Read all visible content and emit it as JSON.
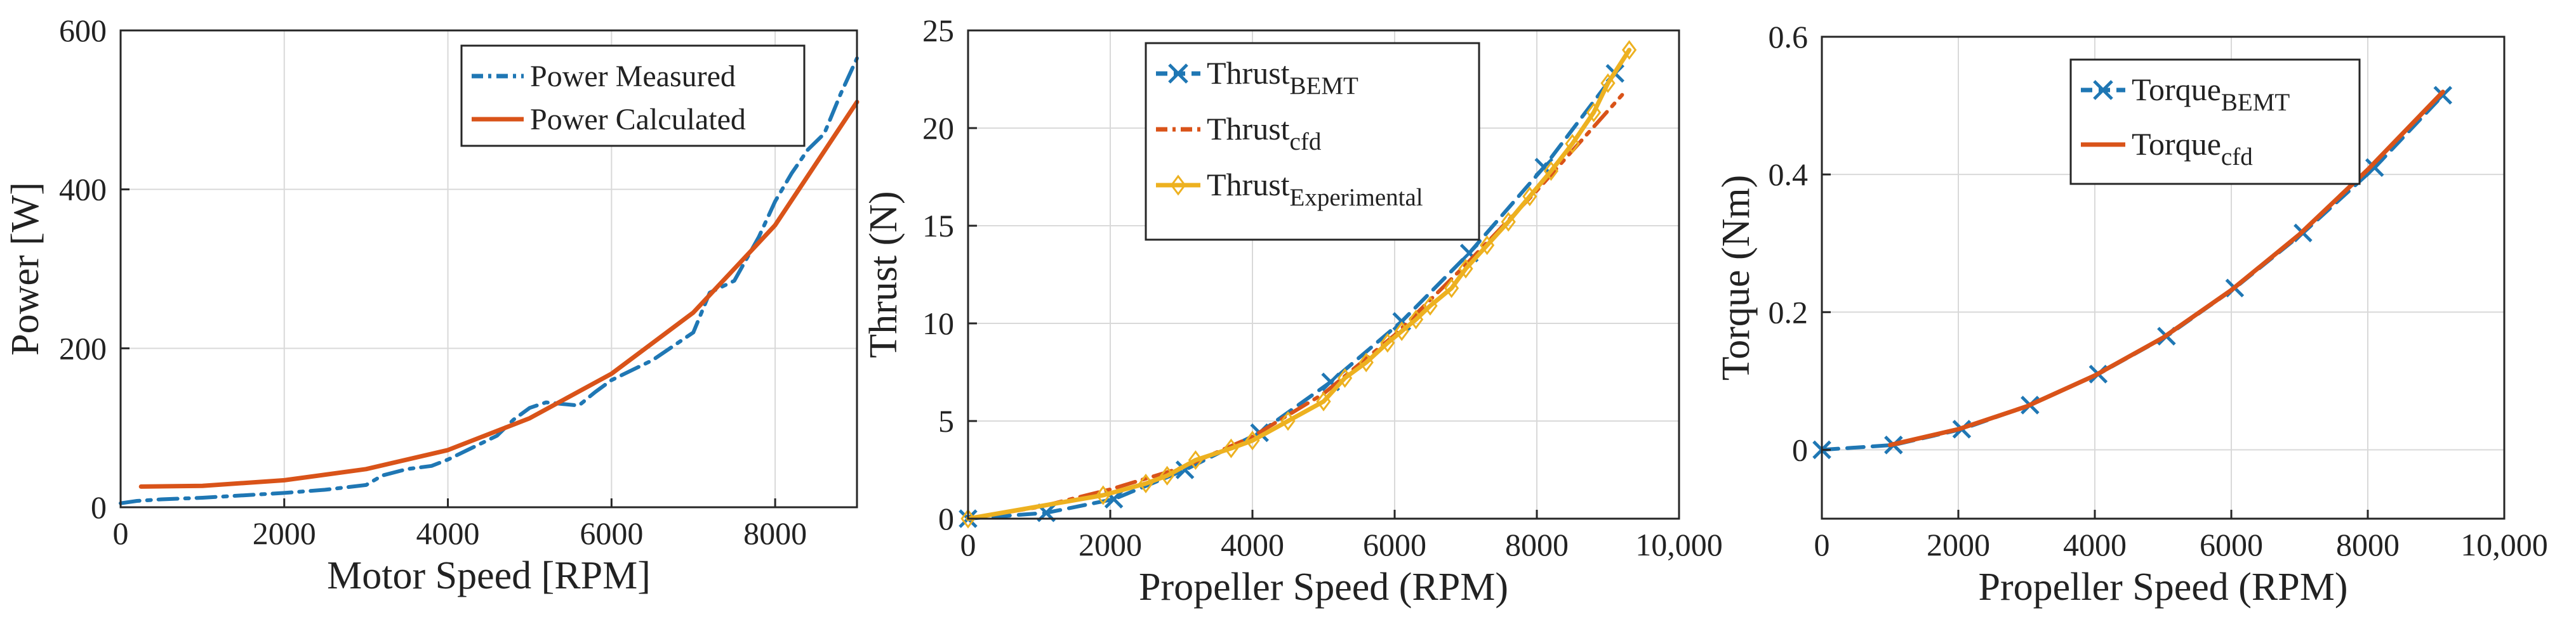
{
  "colors": {
    "blue": "#1f77b4",
    "orange": "#d95319",
    "yellow": "#edb120",
    "grid": "#d9d9d9",
    "axis": "#262626"
  },
  "chart_data": [
    {
      "type": "line",
      "title": "",
      "xlabel": "Motor Speed  [RPM]",
      "ylabel": "Power [W]",
      "xlim": [
        0,
        9000
      ],
      "ylim": [
        0,
        600
      ],
      "xticks": [
        0,
        2000,
        4000,
        6000,
        8000
      ],
      "xtick_labels": [
        "0",
        "2000",
        "4000",
        "6000",
        "8000"
      ],
      "yticks": [
        0,
        200,
        400,
        600
      ],
      "ytick_labels": [
        "0",
        "200",
        "400",
        "600"
      ],
      "grid": true,
      "legend_position": "top-right",
      "series": [
        {
          "name": "Power Measured",
          "label_main": "Power Measured",
          "label_sub": "",
          "style": "dashdot",
          "color": "#1f77b4",
          "marker": "none",
          "x": [
            0,
            200,
            500,
            1000,
            1500,
            2000,
            2500,
            3000,
            3200,
            3500,
            3800,
            4000,
            4300,
            4600,
            4800,
            5000,
            5200,
            5400,
            5600,
            5800,
            6000,
            6500,
            7000,
            7200,
            7500,
            7800,
            8000,
            8200,
            8400,
            8600,
            8800,
            9000
          ],
          "y": [
            5,
            8,
            10,
            12,
            15,
            18,
            22,
            28,
            40,
            48,
            52,
            60,
            75,
            90,
            110,
            125,
            132,
            130,
            128,
            145,
            160,
            185,
            220,
            270,
            285,
            340,
            385,
            420,
            450,
            470,
            520,
            565
          ]
        },
        {
          "name": "Power Calculated",
          "label_main": "Power Calculated",
          "label_sub": "",
          "style": "solid",
          "color": "#d95319",
          "marker": "none",
          "x": [
            250,
            1000,
            2000,
            3000,
            4000,
            5000,
            6000,
            7000,
            8000,
            9000
          ],
          "y": [
            26,
            27,
            34,
            48,
            72,
            112,
            168,
            245,
            355,
            510
          ]
        }
      ]
    },
    {
      "type": "line",
      "title": "",
      "xlabel": "Propeller Speed  (RPM)",
      "ylabel": "Thrust (N)",
      "xlim": [
        0,
        10000
      ],
      "ylim": [
        0,
        25
      ],
      "xticks": [
        0,
        2000,
        4000,
        6000,
        8000,
        10000
      ],
      "xtick_labels": [
        "0",
        "2000",
        "4000",
        "6000",
        "8000",
        "10,000"
      ],
      "yticks": [
        0,
        5,
        10,
        15,
        20,
        25
      ],
      "ytick_labels": [
        "0",
        "5",
        "10",
        "15",
        "20",
        "25"
      ],
      "grid": true,
      "legend_position": "top-left",
      "series": [
        {
          "name": "ThrustBEMT",
          "label_main": "Thrust",
          "label_sub": "BEMT",
          "style": "dashed",
          "color": "#1f77b4",
          "marker": "x",
          "x": [
            0,
            1100,
            2050,
            3050,
            4100,
            5100,
            6100,
            7050,
            8100,
            9100
          ],
          "y": [
            0,
            0.3,
            1.0,
            2.5,
            4.4,
            7.0,
            10.1,
            13.6,
            18.0,
            22.8
          ]
        },
        {
          "name": "Thrustcfd",
          "label_main": "Thrust",
          "label_sub": "cfd",
          "style": "dashdot",
          "color": "#d95319",
          "marker": "none",
          "x": [
            0,
            1000,
            2000,
            3000,
            4000,
            5000,
            6000,
            7000,
            8000,
            9200
          ],
          "y": [
            0,
            0.6,
            1.5,
            2.6,
            4.2,
            6.4,
            9.4,
            13.0,
            16.8,
            21.7
          ]
        },
        {
          "name": "ThrustExperimental",
          "label_main": "Thrust",
          "label_sub": "Experimental",
          "style": "solid",
          "color": "#edb120",
          "marker": "diamond",
          "x": [
            0,
            1900,
            2500,
            2800,
            3200,
            3700,
            4000,
            4500,
            5000,
            5300,
            5600,
            5900,
            6100,
            6300,
            6500,
            6800,
            7000,
            7300,
            7600,
            7900,
            8200,
            8500,
            8800,
            9000,
            9300
          ],
          "y": [
            0,
            1.2,
            1.8,
            2.2,
            3.0,
            3.6,
            4.0,
            5.0,
            6.0,
            7.2,
            8.0,
            9.0,
            9.6,
            10.2,
            10.9,
            11.8,
            12.8,
            14.0,
            15.2,
            16.5,
            17.8,
            19.2,
            20.8,
            22.3,
            24.0
          ]
        }
      ]
    },
    {
      "type": "line",
      "title": "",
      "xlabel": "Propeller Speed  (RPM)",
      "ylabel": "Torque (Nm)",
      "xlim": [
        0,
        10000
      ],
      "ylim": [
        -0.1,
        0.6
      ],
      "xticks": [
        0,
        2000,
        4000,
        6000,
        8000,
        10000
      ],
      "xtick_labels": [
        "0",
        "2000",
        "4000",
        "6000",
        "8000",
        "10,000"
      ],
      "yticks": [
        0,
        0.2,
        0.4,
        0.6
      ],
      "ytick_labels": [
        "0",
        "0.2",
        "0.4",
        "0.6"
      ],
      "grid": true,
      "legend_position": "top-left",
      "series": [
        {
          "name": "TorqueBEMT",
          "label_main": "Torque",
          "label_sub": "BEMT",
          "style": "dashed",
          "color": "#1f77b4",
          "marker": "x",
          "x": [
            0,
            1050,
            2050,
            3050,
            4050,
            5050,
            6050,
            7050,
            8100,
            9100
          ],
          "y": [
            0,
            0.007,
            0.03,
            0.065,
            0.11,
            0.165,
            0.235,
            0.315,
            0.41,
            0.515
          ]
        },
        {
          "name": "Torquecfd",
          "label_main": "Torque",
          "label_sub": "cfd",
          "style": "solid",
          "color": "#d95319",
          "marker": "none",
          "x": [
            1000,
            2000,
            3000,
            4000,
            5000,
            6000,
            7000,
            8000,
            9100
          ],
          "y": [
            0.007,
            0.03,
            0.063,
            0.108,
            0.163,
            0.232,
            0.313,
            0.407,
            0.52
          ]
        }
      ]
    }
  ]
}
